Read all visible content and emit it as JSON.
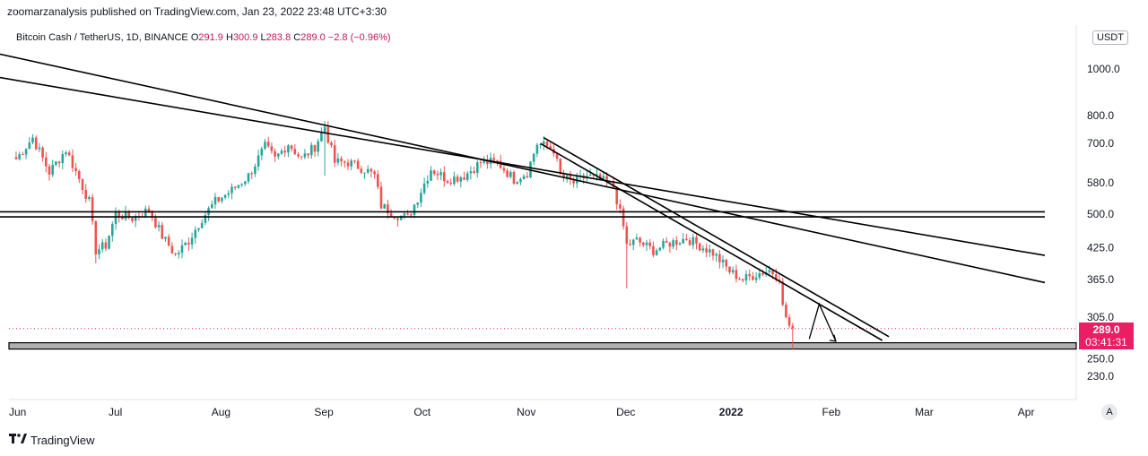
{
  "header": {
    "published": "zoomarzanalysis published on TradingView.com, Jan 23, 2022 23:48 UTC+3:30"
  },
  "legend": {
    "symbol": "Bitcoin Cash / TetherUS, 1D, BINANCE",
    "o_label": "O",
    "o": "291.9",
    "h_label": "H",
    "h": "300.9",
    "l_label": "L",
    "l": "283.8",
    "c_label": "C",
    "c": "289.0",
    "change": "−2.8 (−0.96%)"
  },
  "currency": "USDT",
  "price_tag": {
    "price": "289.0",
    "countdown": "03:41:31"
  },
  "auto_button": "A",
  "brand": "TradingView",
  "colors": {
    "up": "#26a69a",
    "down": "#ef5350",
    "accent": "#e91e63",
    "line": "#000000",
    "band": "#b0b0b0"
  },
  "chart_data": {
    "type": "candlestick",
    "title": "Bitcoin Cash / TetherUS, 1D, BINANCE",
    "scale": "log",
    "y_ticks": [
      "1000.0",
      "800.0",
      "700.0",
      "580.0",
      "500.0",
      "425.0",
      "365.0",
      "305.0",
      "250.0",
      "230.0"
    ],
    "y_tick_values": [
      1000,
      800,
      700,
      580,
      500,
      425,
      365,
      305,
      250,
      230
    ],
    "x_ticks": [
      "Jun",
      "Jul",
      "Aug",
      "Sep",
      "Oct",
      "Nov",
      "Dec",
      "2022",
      "Feb",
      "Mar",
      "Apr"
    ],
    "x_tick_days": [
      0,
      30,
      61,
      92,
      122,
      153,
      183,
      214,
      245,
      273,
      304
    ],
    "last_close": 289.0,
    "anchors": [
      [
        0,
        650
      ],
      [
        5,
        720
      ],
      [
        10,
        610
      ],
      [
        15,
        680
      ],
      [
        20,
        570
      ],
      [
        22,
        530
      ],
      [
        24,
        420
      ],
      [
        27,
        430
      ],
      [
        30,
        500
      ],
      [
        35,
        490
      ],
      [
        40,
        510
      ],
      [
        44,
        450
      ],
      [
        48,
        410
      ],
      [
        52,
        440
      ],
      [
        56,
        490
      ],
      [
        60,
        530
      ],
      [
        65,
        560
      ],
      [
        70,
        600
      ],
      [
        75,
        690
      ],
      [
        78,
        650
      ],
      [
        82,
        700
      ],
      [
        86,
        650
      ],
      [
        90,
        690
      ],
      [
        93,
        760
      ],
      [
        96,
        640
      ],
      [
        100,
        640
      ],
      [
        105,
        620
      ],
      [
        108,
        600
      ],
      [
        110,
        520
      ],
      [
        114,
        500
      ],
      [
        118,
        490
      ],
      [
        121,
        540
      ],
      [
        125,
        620
      ],
      [
        130,
        590
      ],
      [
        135,
        600
      ],
      [
        140,
        640
      ],
      [
        145,
        640
      ],
      [
        150,
        590
      ],
      [
        154,
        610
      ],
      [
        157,
        700
      ],
      [
        160,
        690
      ],
      [
        162,
        680
      ],
      [
        164,
        600
      ],
      [
        168,
        580
      ],
      [
        172,
        600
      ],
      [
        176,
        590
      ],
      [
        180,
        570
      ],
      [
        183,
        470
      ],
      [
        184,
        430
      ],
      [
        187,
        440
      ],
      [
        192,
        420
      ],
      [
        197,
        435
      ],
      [
        202,
        445
      ],
      [
        206,
        430
      ],
      [
        210,
        415
      ],
      [
        215,
        380
      ],
      [
        219,
        365
      ],
      [
        223,
        375
      ],
      [
        227,
        382
      ],
      [
        230,
        370
      ],
      [
        231,
        320
      ],
      [
        233,
        292
      ],
      [
        234,
        289
      ]
    ],
    "trendlines": [
      {
        "name": "long-downtrend-upper",
        "from": [
          -60,
          1300
        ],
        "to": [
          310,
          360
        ]
      },
      {
        "name": "long-downtrend-lower",
        "from": [
          -20,
          1000
        ],
        "to": [
          310,
          410
        ]
      },
      {
        "name": "steep-downtrend-a",
        "from": [
          158,
          700
        ],
        "to": [
          261,
          273
        ]
      },
      {
        "name": "steep-downtrend-b",
        "from": [
          159,
          720
        ],
        "to": [
          263,
          278
        ]
      },
      {
        "name": "horizontal-resistance-top",
        "from": [
          -5,
          505
        ],
        "to": [
          310,
          505
        ]
      },
      {
        "name": "horizontal-resistance-bottom",
        "from": [
          -5,
          493
        ],
        "to": [
          310,
          493
        ]
      },
      {
        "name": "projected-path",
        "points": [
          [
            239,
            275
          ],
          [
            242,
            325
          ],
          [
            247,
            272
          ]
        ]
      }
    ],
    "support_zone": {
      "low": 262,
      "high": 270
    }
  }
}
